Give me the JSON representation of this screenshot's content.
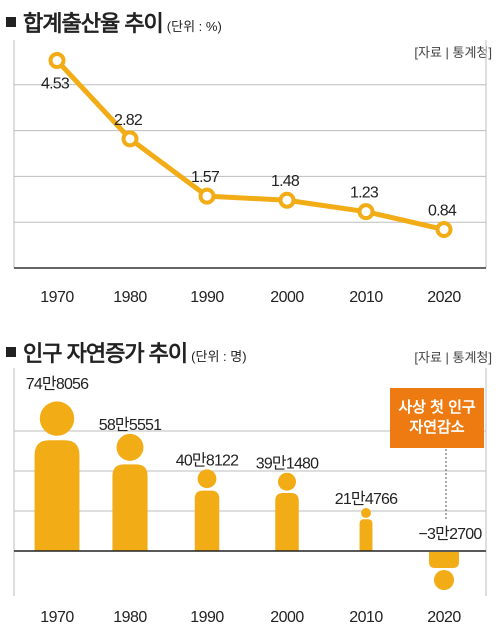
{
  "colors": {
    "accent": "#f2ac15",
    "grid": "#bdbdbd",
    "callout": "#ee7a12"
  },
  "chart_data": [
    {
      "type": "line",
      "title": "합계출산율 추이",
      "unit_note": "(단위 : %)",
      "source": "[자료 | 통계청]",
      "categories": [
        "1970",
        "1980",
        "1990",
        "2000",
        "2010",
        "2020"
      ],
      "values": [
        4.53,
        2.82,
        1.57,
        1.48,
        1.23,
        0.84
      ],
      "value_labels": [
        "4.53",
        "2.82",
        "1.57",
        "1.48",
        "1.23",
        "0.84"
      ],
      "ylim": [
        0,
        5
      ],
      "grid": true
    },
    {
      "type": "bar",
      "title": "인구 자연증가 추이",
      "unit_note": "(단위 : 명)",
      "source": "[자료 | 통계청]",
      "categories": [
        "1970",
        "1980",
        "1990",
        "2000",
        "2010",
        "2020"
      ],
      "values": [
        748056,
        585551,
        408122,
        391480,
        214766,
        -32700
      ],
      "value_labels": [
        "74만8056",
        "58만5551",
        "40만8122",
        "39만1480",
        "21만4766",
        "−3만2700"
      ],
      "ylim": [
        -100000,
        800000
      ],
      "grid": true,
      "annotation": "사상 첫 인구\n자연감소"
    }
  ]
}
